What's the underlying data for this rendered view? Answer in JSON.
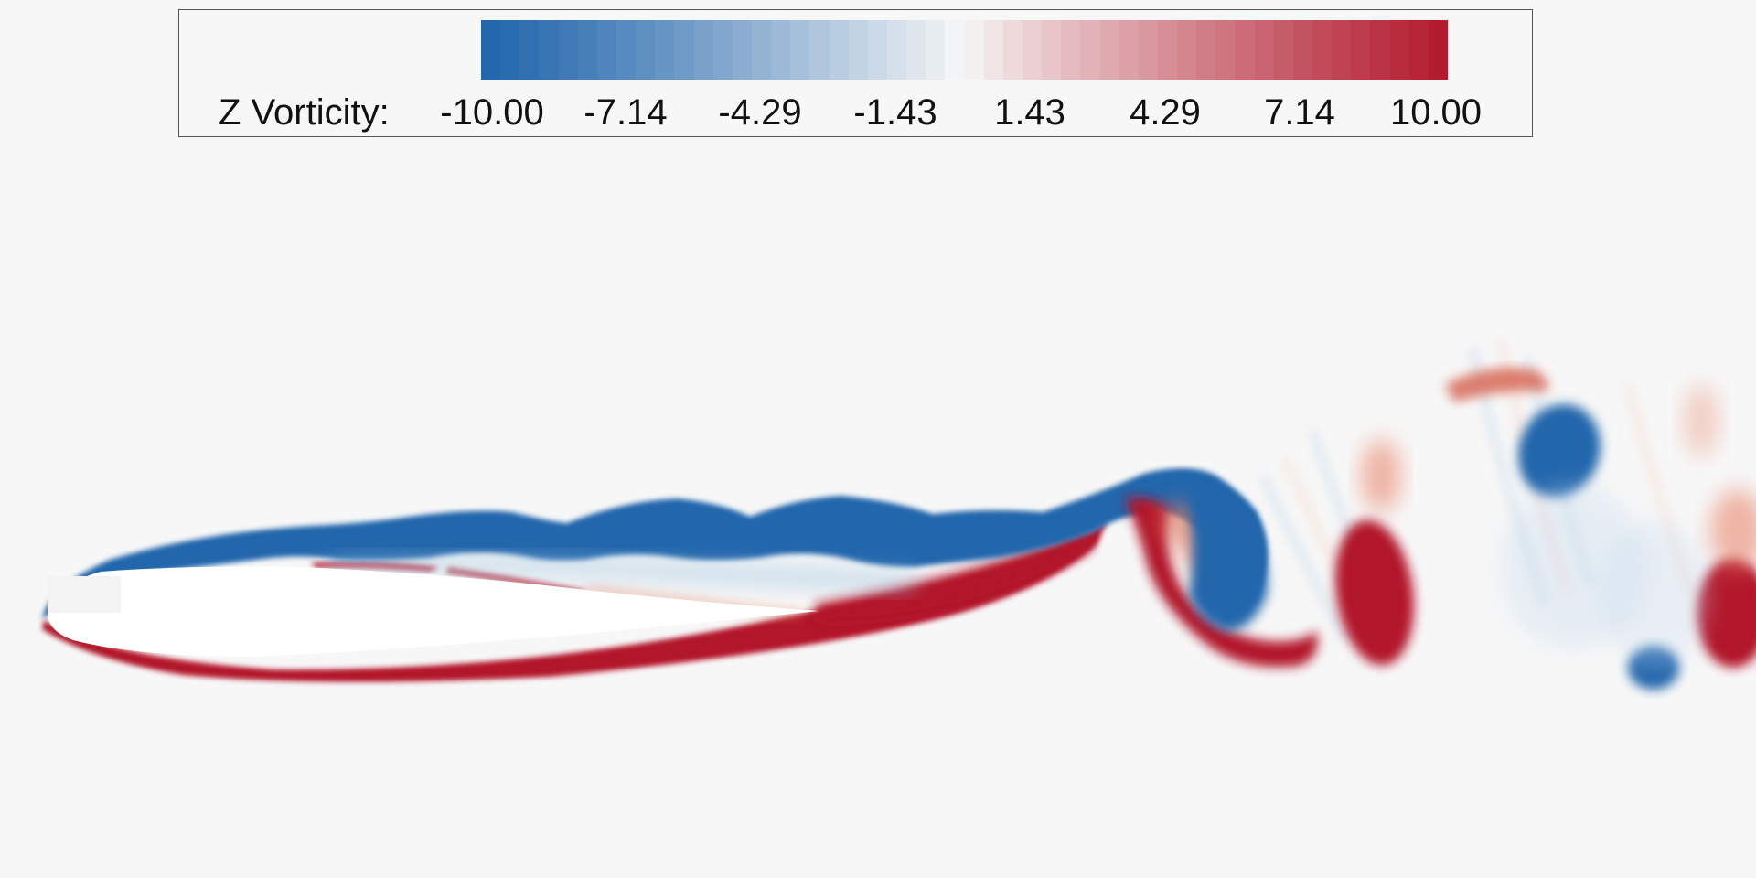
{
  "legend": {
    "title": "Z Vorticity:",
    "ticks": [
      "-10.00",
      "-7.14",
      "-4.29",
      "-1.43",
      "1.43",
      "4.29",
      "7.14",
      "10.00"
    ],
    "range": [
      -10.0,
      10.0
    ],
    "levels": 50,
    "color_low": "#2166ac",
    "color_mid": "#f7f7f7",
    "color_high": "#b2182b"
  },
  "colors": {
    "background": "#f7f7f7",
    "airfoil": "#ffffff",
    "negative": "#2166ac",
    "positive": "#b2182b"
  }
}
